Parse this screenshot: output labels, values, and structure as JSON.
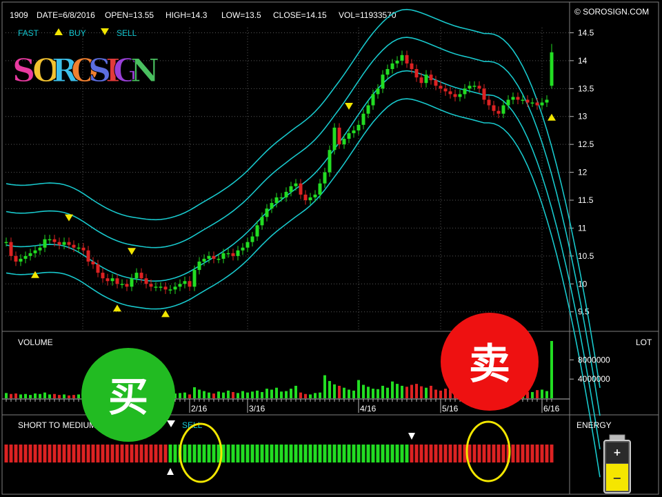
{
  "header": {
    "code": "1909",
    "date": "DATE=6/8/2016",
    "open": "OPEN=13.55",
    "high": "HIGH=14.3",
    "low": "LOW=13.5",
    "close": "CLOSE=14.15",
    "vol": "VOL=11933570",
    "copyright": "© SOROSIGN.COM",
    "fast_label": "FAST",
    "buy_label": "BUY",
    "sell_label": "SELL"
  },
  "logo": {
    "letters": [
      "S",
      "O",
      "R",
      "O",
      "S",
      "I",
      "G",
      "N"
    ],
    "colors": [
      "#e83aa0",
      "#f2c230",
      "#3dc0ea",
      "#f08030",
      "#5c6ee0",
      "#e23a3a",
      "#9a40d8",
      "#4ac060"
    ]
  },
  "volume_panel": {
    "title": "VOLUME",
    "unit": "LOT"
  },
  "energy_panel": {
    "short_to_medium": "SHORT TO MEDIUM",
    "sell_word": "SELL",
    "energy": "ENERGY"
  },
  "callouts": {
    "buy_char": "买",
    "sell_char": "卖"
  },
  "colors": {
    "up": "#22dd22",
    "down": "#dd2222",
    "band": "#18c8cc",
    "buy_marker": "#f2e600",
    "sell_marker": "#f2e600",
    "buy_callout": "#22bb22",
    "sell_callout": "#ee1111"
  },
  "chart_data": [
    {
      "type": "candlestick",
      "ylim": [
        9.15,
        15.05
      ],
      "yticks": [
        9.5,
        10,
        10.5,
        11,
        11.5,
        12,
        12.5,
        13,
        13.5,
        14,
        14.5
      ],
      "date_labels": [
        {
          "label": "2/16",
          "index": 38
        },
        {
          "label": "3/16",
          "index": 50
        },
        {
          "label": "4/16",
          "index": 73
        },
        {
          "label": "5/16",
          "index": 90
        },
        {
          "label": "6/16",
          "index": 111
        }
      ],
      "last_candle": {
        "open": 13.55,
        "high": 14.3,
        "low": 13.5,
        "close": 14.15
      },
      "closes": [
        10.75,
        10.5,
        10.4,
        10.45,
        10.5,
        10.55,
        10.6,
        10.65,
        10.8,
        10.8,
        10.75,
        10.7,
        10.75,
        10.7,
        10.65,
        10.65,
        10.6,
        10.4,
        10.35,
        10.2,
        10.1,
        10.05,
        10.1,
        10.0,
        10.0,
        9.95,
        10.1,
        10.2,
        10.1,
        10.0,
        9.95,
        9.95,
        9.95,
        9.9,
        9.9,
        9.95,
        10.0,
        10.05,
        9.95,
        10.25,
        10.4,
        10.45,
        10.5,
        10.45,
        10.45,
        10.55,
        10.55,
        10.5,
        10.6,
        10.65,
        10.75,
        10.85,
        11.05,
        11.2,
        11.35,
        11.45,
        11.55,
        11.55,
        11.65,
        11.75,
        11.8,
        11.6,
        11.5,
        11.55,
        11.6,
        11.8,
        12.0,
        12.4,
        12.8,
        12.5,
        12.6,
        12.7,
        12.75,
        12.85,
        13.05,
        13.2,
        13.4,
        13.5,
        13.75,
        13.85,
        13.95,
        14.0,
        14.1,
        13.95,
        13.85,
        13.7,
        13.6,
        13.75,
        13.65,
        13.55,
        13.5,
        13.45,
        13.4,
        13.35,
        13.4,
        13.5,
        13.55,
        13.55,
        13.5,
        13.3,
        13.2,
        13.1,
        13.05,
        13.2,
        13.3,
        13.35,
        13.3,
        13.3,
        13.25,
        13.25,
        13.2,
        13.25,
        13.3,
        14.15
      ],
      "volumes": [
        1.1,
        0.9,
        1.0,
        0.8,
        0.9,
        0.7,
        1.0,
        0.9,
        1.2,
        0.8,
        0.9,
        0.7,
        0.8,
        0.6,
        0.7,
        0.8,
        0.9,
        1.0,
        0.8,
        0.7,
        0.9,
        0.8,
        0.6,
        0.7,
        0.8,
        0.9,
        0.7,
        0.6,
        0.5,
        0.7,
        0.6,
        0.8,
        0.7,
        0.6,
        0.9,
        1.0,
        1.1,
        1.2,
        0.8,
        2.3,
        1.8,
        1.5,
        1.2,
        1.0,
        1.4,
        1.2,
        1.6,
        1.3,
        1.1,
        1.5,
        1.2,
        1.4,
        1.6,
        1.3,
        2.0,
        1.8,
        2.2,
        1.4,
        1.5,
        2.0,
        2.6,
        1.2,
        0.9,
        0.8,
        1.1,
        1.2,
        4.8,
        3.6,
        2.9,
        2.6,
        2.2,
        1.8,
        1.6,
        3.8,
        2.8,
        2.4,
        2.0,
        1.9,
        2.6,
        2.2,
        3.5,
        3.0,
        2.6,
        2.4,
        2.8,
        3.0,
        2.5,
        2.2,
        2.6,
        1.8,
        1.6,
        2.0,
        1.8,
        1.5,
        1.4,
        1.2,
        1.5,
        1.8,
        1.4,
        1.3,
        1.6,
        1.7,
        1.2,
        1.5,
        1.6,
        1.4,
        1.0,
        1.4,
        1.3,
        1.3,
        1.7,
        1.8,
        1.5,
        11.93
      ],
      "volume_ticks": [
        4000000,
        8000000
      ],
      "volume_max": 12500000,
      "buy_signals": [
        6,
        23,
        33
      ],
      "sell_signals": [
        13,
        26,
        71
      ],
      "energy_switch_to_up": 34,
      "energy_switch_to_down": 84
    }
  ]
}
